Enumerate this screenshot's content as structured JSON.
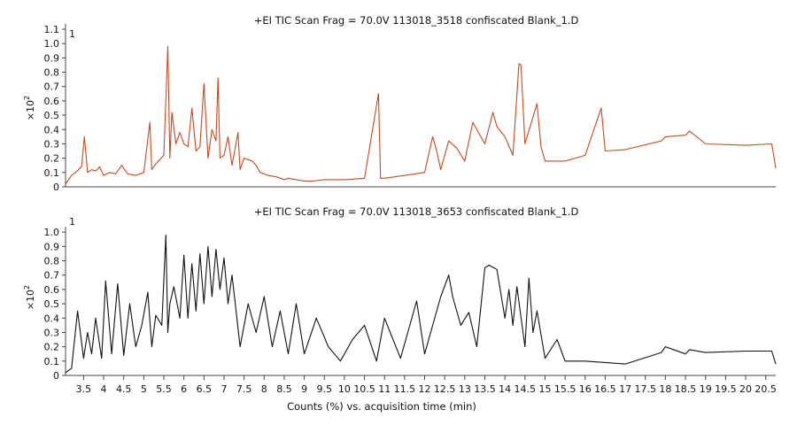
{
  "chart_data": [
    {
      "type": "line",
      "title": "+EI TIC Scan Frag = 70.0V 113018_3518 confiscated Blank_1.D",
      "ylabel_prefix": "×10",
      "ylabel_exp": "2",
      "corner_label": "1",
      "ylim": [
        0,
        1.1
      ],
      "yticks": [
        "0",
        "0.1",
        "0.2",
        "0.3",
        "0.4",
        "0.5",
        "0.6",
        "0.7",
        "0.8",
        "0.9",
        "1.0",
        "1.1"
      ],
      "color": "#c9491f",
      "x": [
        3.05,
        3.2,
        3.3,
        3.45,
        3.52,
        3.6,
        3.7,
        3.8,
        3.9,
        4.0,
        4.15,
        4.3,
        4.45,
        4.6,
        4.8,
        5.0,
        5.15,
        5.2,
        5.3,
        5.5,
        5.6,
        5.65,
        5.7,
        5.8,
        5.9,
        6.0,
        6.1,
        6.2,
        6.3,
        6.4,
        6.5,
        6.6,
        6.7,
        6.8,
        6.85,
        6.9,
        7.0,
        7.1,
        7.2,
        7.35,
        7.4,
        7.5,
        7.7,
        7.8,
        7.9,
        8.1,
        8.3,
        8.5,
        8.6,
        8.8,
        9.0,
        9.2,
        9.5,
        10.0,
        10.5,
        10.85,
        10.9,
        11.0,
        11.5,
        12.0,
        12.2,
        12.3,
        12.4,
        12.6,
        12.8,
        13.0,
        13.2,
        13.5,
        13.7,
        13.8,
        14.0,
        14.2,
        14.35,
        14.4,
        14.5,
        14.8,
        14.9,
        15.0,
        15.5,
        16.0,
        16.4,
        16.5,
        17.0,
        17.9,
        18.0,
        18.5,
        18.6,
        19.0,
        20.0,
        20.65,
        20.75
      ],
      "y": [
        0.02,
        0.08,
        0.1,
        0.14,
        0.35,
        0.1,
        0.12,
        0.11,
        0.14,
        0.08,
        0.1,
        0.09,
        0.15,
        0.09,
        0.08,
        0.1,
        0.45,
        0.12,
        0.16,
        0.22,
        0.98,
        0.2,
        0.52,
        0.3,
        0.38,
        0.3,
        0.28,
        0.55,
        0.25,
        0.28,
        0.72,
        0.2,
        0.4,
        0.32,
        0.76,
        0.2,
        0.22,
        0.35,
        0.15,
        0.38,
        0.12,
        0.2,
        0.18,
        0.15,
        0.1,
        0.08,
        0.07,
        0.05,
        0.06,
        0.05,
        0.04,
        0.04,
        0.05,
        0.05,
        0.06,
        0.65,
        0.06,
        0.06,
        0.08,
        0.1,
        0.35,
        0.25,
        0.12,
        0.32,
        0.27,
        0.18,
        0.45,
        0.3,
        0.52,
        0.42,
        0.35,
        0.22,
        0.86,
        0.85,
        0.3,
        0.58,
        0.28,
        0.18,
        0.18,
        0.22,
        0.55,
        0.25,
        0.26,
        0.32,
        0.35,
        0.36,
        0.39,
        0.3,
        0.29,
        0.3,
        0.13
      ]
    },
    {
      "type": "line",
      "title": "+EI TIC Scan Frag = 70.0V 113018_3653 confiscated Blank_1.D",
      "ylabel_prefix": "×10",
      "ylabel_exp": "2",
      "corner_label": "1",
      "ylim": [
        0,
        1.1
      ],
      "yticks": [
        "0",
        "0.1",
        "0.2",
        "0.3",
        "0.4",
        "0.5",
        "0.6",
        "0.7",
        "0.8",
        "0.9",
        "1.0"
      ],
      "color": "#111111",
      "x": [
        3.05,
        3.2,
        3.35,
        3.5,
        3.6,
        3.7,
        3.8,
        3.95,
        4.05,
        4.2,
        4.35,
        4.5,
        4.65,
        4.8,
        4.95,
        5.1,
        5.2,
        5.3,
        5.45,
        5.55,
        5.6,
        5.65,
        5.75,
        5.9,
        6.0,
        6.1,
        6.2,
        6.3,
        6.4,
        6.5,
        6.6,
        6.7,
        6.8,
        6.9,
        7.0,
        7.1,
        7.2,
        7.3,
        7.4,
        7.6,
        7.8,
        8.0,
        8.2,
        8.4,
        8.6,
        8.8,
        9.0,
        9.3,
        9.6,
        9.9,
        10.2,
        10.5,
        10.8,
        11.0,
        11.4,
        11.8,
        12.0,
        12.4,
        12.6,
        12.7,
        12.9,
        13.1,
        13.3,
        13.5,
        13.6,
        13.8,
        14.0,
        14.1,
        14.2,
        14.3,
        14.5,
        14.6,
        14.7,
        14.8,
        15.0,
        15.3,
        15.5,
        16.0,
        16.5,
        17.0,
        17.9,
        18.0,
        18.5,
        18.6,
        19.0,
        20.0,
        20.65,
        20.75
      ],
      "y": [
        0.02,
        0.05,
        0.45,
        0.12,
        0.3,
        0.15,
        0.4,
        0.12,
        0.66,
        0.15,
        0.64,
        0.14,
        0.5,
        0.2,
        0.35,
        0.58,
        0.2,
        0.42,
        0.35,
        0.98,
        0.3,
        0.5,
        0.62,
        0.4,
        0.84,
        0.4,
        0.78,
        0.45,
        0.85,
        0.5,
        0.9,
        0.55,
        0.88,
        0.6,
        0.82,
        0.5,
        0.7,
        0.45,
        0.2,
        0.5,
        0.3,
        0.55,
        0.2,
        0.45,
        0.15,
        0.5,
        0.15,
        0.4,
        0.2,
        0.1,
        0.25,
        0.35,
        0.1,
        0.4,
        0.12,
        0.52,
        0.15,
        0.55,
        0.7,
        0.55,
        0.35,
        0.44,
        0.2,
        0.75,
        0.77,
        0.74,
        0.4,
        0.6,
        0.35,
        0.62,
        0.2,
        0.68,
        0.3,
        0.45,
        0.12,
        0.25,
        0.1,
        0.1,
        0.09,
        0.08,
        0.16,
        0.2,
        0.15,
        0.18,
        0.16,
        0.17,
        0.17,
        0.08
      ]
    }
  ],
  "x_axis": {
    "label": "Counts (%) vs. acquisition time (min)",
    "xlim": [
      3.05,
      20.75
    ],
    "ticks": [
      "3.5",
      "4",
      "4.5",
      "5",
      "5.5",
      "6",
      "6.5",
      "7",
      "7.5",
      "8",
      "8.5",
      "9",
      "9.5",
      "10",
      "10.5",
      "11",
      "11.5",
      "12",
      "12.5",
      "13",
      "13.5",
      "14",
      "14.5",
      "15",
      "15.5",
      "16",
      "16.5",
      "17",
      "17.5",
      "18",
      "18.5",
      "19",
      "19.5",
      "20",
      "20.5"
    ]
  }
}
